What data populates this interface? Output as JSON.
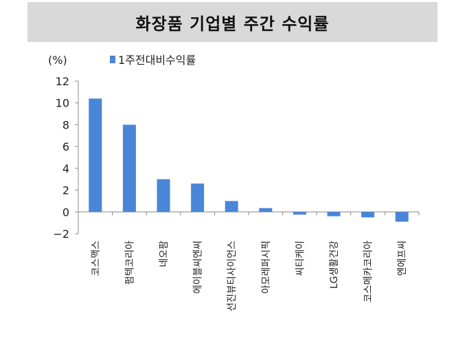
{
  "chart_data": {
    "type": "bar",
    "title": "화장품 기업별 주간 수익률",
    "ylabel": "(%)",
    "ylim": [
      -2,
      12
    ],
    "yticks": [
      12,
      10,
      8,
      6,
      4,
      2,
      0,
      -2
    ],
    "ytick_labels": [
      "12",
      "10",
      "8",
      "6",
      "4",
      "2",
      "0",
      "−2"
    ],
    "categories": [
      "코스맥스",
      "펌텍코리아",
      "네오팜",
      "에이블씨엔씨",
      "선진뷰티사이언스",
      "아모레퍼시픽",
      "씨티케이",
      "LG생활건강",
      "코스메카코리아",
      "엔에프씨"
    ],
    "series": [
      {
        "name": "1주전대비수익률",
        "values": [
          10.4,
          8.0,
          3.0,
          2.6,
          1.0,
          0.35,
          -0.25,
          -0.4,
          -0.5,
          -0.9
        ]
      }
    ],
    "legend_position": "top-left",
    "grid": false,
    "colors": {
      "bar": "#4a86d8"
    }
  }
}
